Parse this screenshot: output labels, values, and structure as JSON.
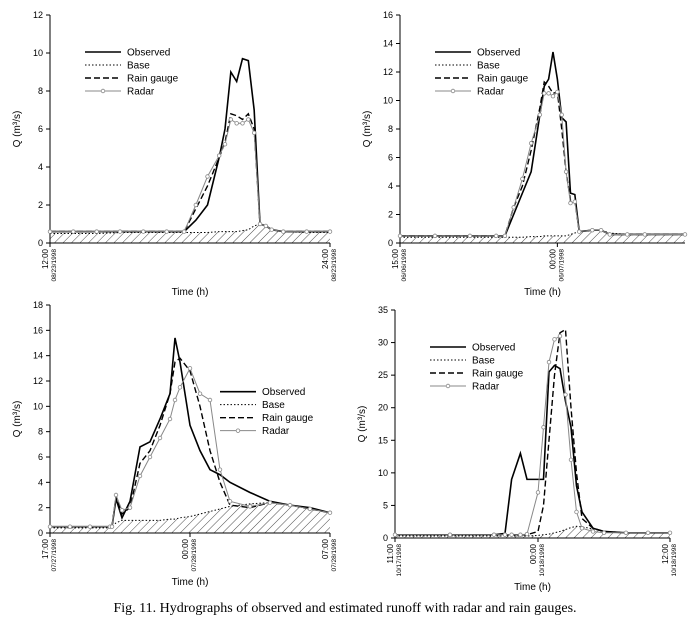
{
  "caption": "Fig. 11. Hydrographs of observed and estimated runoff with radar and rain gauges.",
  "chart_data": [
    {
      "type": "line",
      "xlabel": "Time (h)",
      "ylabel": "Q (m³/s)",
      "legend": "upper left",
      "xlim": [
        0,
        12
      ],
      "xticks": [
        {
          "value": 0,
          "label": "12:00",
          "date": "08/23/1998"
        },
        {
          "value": 12,
          "label": "24:00",
          "date": "08/23/1998"
        }
      ],
      "ylim": [
        0,
        12
      ],
      "yticks": [
        0,
        2,
        4,
        6,
        8,
        10,
        12
      ],
      "x": [
        0,
        1,
        2,
        3,
        4,
        5,
        5.75,
        6.25,
        6.75,
        7.25,
        7.5,
        7.75,
        8,
        8.25,
        8.5,
        8.75,
        9,
        9.25,
        9.5,
        10,
        11,
        12
      ],
      "series": [
        {
          "name": "Observed",
          "color": "#000000",
          "style": "solid",
          "values": [
            0.6,
            0.6,
            0.6,
            0.6,
            0.6,
            0.6,
            0.6,
            1.2,
            2.0,
            4.5,
            6.0,
            9.0,
            8.5,
            9.7,
            9.6,
            7.0,
            1.0,
            0.9,
            0.7,
            0.6,
            0.6,
            0.6
          ]
        },
        {
          "name": "Base",
          "color": "#000000",
          "style": "dotted",
          "hatch": true,
          "values": [
            0.5,
            0.5,
            0.5,
            0.55,
            0.55,
            0.55,
            0.55,
            0.55,
            0.55,
            0.6,
            0.6,
            0.6,
            0.6,
            0.65,
            0.7,
            0.9,
            1.0,
            0.9,
            0.7,
            0.6,
            0.55,
            0.55
          ]
        },
        {
          "name": "Rain gauge",
          "color": "#000000",
          "style": "dashed",
          "values": [
            0.6,
            0.6,
            0.6,
            0.6,
            0.6,
            0.6,
            0.6,
            1.8,
            3.0,
            4.5,
            5.3,
            6.8,
            6.7,
            6.5,
            6.8,
            6.0,
            1.0,
            0.9,
            0.7,
            0.6,
            0.6,
            0.6
          ]
        },
        {
          "name": "Radar",
          "color": "#888888",
          "style": "marker",
          "values": [
            0.6,
            0.6,
            0.6,
            0.6,
            0.6,
            0.6,
            0.6,
            2.0,
            3.5,
            4.6,
            5.2,
            6.5,
            6.3,
            6.3,
            6.5,
            5.8,
            1.0,
            0.9,
            0.7,
            0.6,
            0.6,
            0.6
          ]
        }
      ]
    },
    {
      "type": "line",
      "xlabel": "Time (h)",
      "ylabel": "Q (m³/s)",
      "legend": "upper left",
      "xlim": [
        0,
        16.3
      ],
      "xticks": [
        {
          "value": 0,
          "label": "15:00",
          "date": "06/06/1998"
        },
        {
          "value": 9,
          "label": "00:00",
          "date": "06/07/1998"
        }
      ],
      "ylim": [
        0,
        16
      ],
      "yticks": [
        0,
        2,
        4,
        6,
        8,
        10,
        12,
        14,
        16
      ],
      "x": [
        0,
        2,
        4,
        5.5,
        6,
        6.5,
        7,
        7.5,
        8,
        8.25,
        8.5,
        8.75,
        9,
        9.25,
        9.5,
        9.75,
        10,
        10.25,
        11,
        11.5,
        12,
        13,
        14,
        16.3
      ],
      "series": [
        {
          "name": "Observed",
          "color": "#000000",
          "style": "solid",
          "values": [
            0.5,
            0.5,
            0.5,
            0.5,
            0.5,
            2.0,
            3.5,
            5.0,
            9.0,
            11.0,
            11.5,
            13.4,
            11.5,
            8.8,
            8.5,
            3.5,
            3.4,
            0.8,
            0.9,
            0.9,
            0.6,
            0.6,
            0.6,
            0.6
          ]
        },
        {
          "name": "Base",
          "color": "#000000",
          "style": "dotted",
          "hatch": true,
          "values": [
            0.4,
            0.4,
            0.4,
            0.4,
            0.4,
            0.4,
            0.4,
            0.45,
            0.45,
            0.5,
            0.5,
            0.5,
            0.5,
            0.5,
            0.5,
            0.6,
            0.7,
            0.8,
            0.9,
            0.9,
            0.7,
            0.6,
            0.6,
            0.6
          ]
        },
        {
          "name": "Rain gauge",
          "color": "#000000",
          "style": "dashed",
          "values": [
            0.5,
            0.5,
            0.5,
            0.5,
            0.5,
            2.5,
            4.0,
            6.5,
            9.5,
            11.3,
            11.0,
            10.5,
            10.6,
            8.0,
            5.0,
            3.0,
            3.0,
            0.8,
            0.9,
            0.9,
            0.6,
            0.6,
            0.6,
            0.6
          ]
        },
        {
          "name": "Radar",
          "color": "#888888",
          "style": "marker",
          "values": [
            0.5,
            0.5,
            0.5,
            0.5,
            0.5,
            2.5,
            4.5,
            7.0,
            9.0,
            10.5,
            10.5,
            10.3,
            10.6,
            9.0,
            5.0,
            2.8,
            2.9,
            0.8,
            0.9,
            0.9,
            0.6,
            0.6,
            0.6,
            0.6
          ]
        }
      ]
    },
    {
      "type": "line",
      "xlabel": "Time (h)",
      "ylabel": "Q (m³/s)",
      "legend": "right",
      "xlim": [
        0,
        14
      ],
      "xticks": [
        {
          "value": 0,
          "label": "17:00",
          "date": "07/27/1998"
        },
        {
          "value": 7,
          "label": "00:00",
          "date": "07/28/1998"
        },
        {
          "value": 14,
          "label": "07:00",
          "date": "07/28/1998"
        }
      ],
      "ylim": [
        0,
        18
      ],
      "yticks": [
        0,
        2,
        4,
        6,
        8,
        10,
        12,
        14,
        16,
        18
      ],
      "x": [
        0,
        1,
        2,
        3,
        3.1,
        3.3,
        3.6,
        4,
        4.5,
        5,
        5.5,
        6,
        6.25,
        6.5,
        7,
        7.5,
        8,
        8.5,
        9,
        10,
        11,
        12,
        13,
        14
      ],
      "series": [
        {
          "name": "Observed",
          "color": "#000000",
          "style": "solid",
          "values": [
            0.5,
            0.5,
            0.5,
            0.5,
            0.5,
            2.7,
            1.2,
            2.5,
            6.8,
            7.2,
            9.0,
            11.0,
            15.4,
            13.5,
            8.5,
            6.5,
            5.0,
            4.6,
            4.0,
            3.2,
            2.5,
            2.2,
            2.0,
            1.6
          ]
        },
        {
          "name": "Base",
          "color": "#000000",
          "style": "dotted",
          "hatch": true,
          "values": [
            0.4,
            0.4,
            0.4,
            0.4,
            0.5,
            0.8,
            1.0,
            1.0,
            1.0,
            1.0,
            1.0,
            1.1,
            1.1,
            1.2,
            1.3,
            1.5,
            1.7,
            1.9,
            2.1,
            2.3,
            2.4,
            2.2,
            1.9,
            1.6
          ]
        },
        {
          "name": "Rain gauge",
          "color": "#000000",
          "style": "dashed",
          "values": [
            0.5,
            0.5,
            0.5,
            0.5,
            0.5,
            2.9,
            1.5,
            2.0,
            5.5,
            6.5,
            8.5,
            11.0,
            13.5,
            13.8,
            12.8,
            10.0,
            6.5,
            4.0,
            2.2,
            2.0,
            2.4,
            2.2,
            1.9,
            1.6
          ]
        },
        {
          "name": "Radar",
          "color": "#888888",
          "style": "marker",
          "values": [
            0.5,
            0.5,
            0.5,
            0.5,
            0.5,
            3.0,
            1.8,
            2.0,
            4.5,
            6.0,
            7.5,
            9.0,
            10.5,
            11.5,
            13.0,
            11.0,
            10.5,
            5.0,
            2.5,
            2.1,
            2.4,
            2.2,
            1.9,
            1.6
          ]
        }
      ]
    },
    {
      "type": "line",
      "xlabel": "Time (h)",
      "ylabel": "Q (m³/s)",
      "legend": "upper left",
      "xlim": [
        0,
        25
      ],
      "xticks": [
        {
          "value": 0,
          "label": "11:00",
          "date": "10/17/1998"
        },
        {
          "value": 13,
          "label": "00:00",
          "date": "10/18/1998"
        },
        {
          "value": 25,
          "label": "12:00",
          "date": "10/18/1998"
        }
      ],
      "ylim": [
        0,
        35
      ],
      "yticks": [
        0,
        5,
        10,
        15,
        20,
        25,
        30,
        35
      ],
      "x": [
        0,
        5,
        9,
        10,
        10.6,
        11.4,
        12,
        13,
        13.5,
        14,
        14.5,
        15,
        15.5,
        16,
        16.5,
        17,
        18,
        19,
        21,
        23,
        25
      ],
      "series": [
        {
          "name": "Observed",
          "color": "#000000",
          "style": "solid",
          "values": [
            0.5,
            0.5,
            0.5,
            0.7,
            9.0,
            13.0,
            9.0,
            9.0,
            9.0,
            25.5,
            26.5,
            26.0,
            21.0,
            17.0,
            8.0,
            4.0,
            1.5,
            1.0,
            0.8,
            0.8,
            0.8
          ]
        },
        {
          "name": "Base",
          "color": "#000000",
          "style": "dotted",
          "hatch": true,
          "values": [
            0.3,
            0.3,
            0.3,
            0.3,
            0.3,
            0.3,
            0.3,
            0.4,
            0.5,
            0.6,
            0.8,
            1.0,
            1.3,
            1.6,
            1.8,
            1.7,
            1.4,
            1.0,
            0.8,
            0.8,
            0.8
          ]
        },
        {
          "name": "Rain gauge",
          "color": "#000000",
          "style": "dashed",
          "values": [
            0.5,
            0.5,
            0.5,
            0.5,
            0.5,
            0.5,
            0.5,
            1.0,
            5.0,
            15.0,
            25.0,
            31.5,
            32.0,
            20.0,
            10.0,
            3.0,
            1.5,
            1.0,
            0.8,
            0.8,
            0.8
          ]
        },
        {
          "name": "Radar",
          "color": "#888888",
          "style": "marker",
          "values": [
            0.5,
            0.5,
            0.5,
            0.5,
            0.5,
            0.5,
            0.6,
            7.0,
            17.0,
            27.0,
            30.5,
            31.0,
            22.0,
            12.0,
            4.0,
            1.5,
            1.0,
            0.8,
            0.8,
            0.8,
            0.8
          ]
        }
      ]
    }
  ]
}
